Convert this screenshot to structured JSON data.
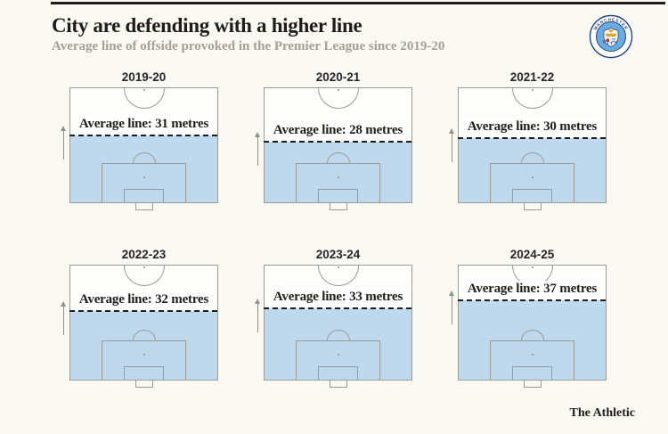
{
  "header": {
    "title": "City are defending with a higher line",
    "subtitle": "Average line of offside provoked in the Premier League since 2019-20"
  },
  "badge": {
    "club": "Manchester City",
    "ring_top_text": "MANCHESTER",
    "ring_bottom_text": "CITY"
  },
  "chart_data": {
    "type": "area",
    "subtype": "football-pitch-small-multiples",
    "title": "City are defending with a higher line",
    "subtitle": "Average line of offside provoked in the Premier League since 2019-20",
    "categories": [
      "2019-20",
      "2020-21",
      "2021-22",
      "2022-23",
      "2023-24",
      "2024-25"
    ],
    "values_metres": [
      31,
      28,
      30,
      32,
      33,
      37
    ],
    "unit": "metres",
    "pitch_half_length_metres": 53,
    "layout": {
      "rows": 2,
      "cols": 3,
      "legend": "none",
      "grid": "off"
    },
    "panel_labels": [
      "Average line: 31 metres",
      "Average line: 28 metres",
      "Average line: 30 metres",
      "Average line: 32 metres",
      "Average line: 33 metres",
      "Average line: 37 metres"
    ]
  },
  "pitches": [
    {
      "season": "2019-20",
      "metres": 31,
      "label": "Average line: 31 metres"
    },
    {
      "season": "2020-21",
      "metres": 28,
      "label": "Average line: 28 metres"
    },
    {
      "season": "2021-22",
      "metres": 30,
      "label": "Average line: 30 metres"
    },
    {
      "season": "2022-23",
      "metres": 32,
      "label": "Average line: 32 metres"
    },
    {
      "season": "2023-24",
      "metres": 33,
      "label": "Average line: 33 metres"
    },
    {
      "season": "2024-25",
      "metres": 37,
      "label": "Average line: 37 metres"
    }
  ],
  "footer": {
    "credit": "The Athletic"
  },
  "colors": {
    "background": "#f9f8f2",
    "fill_blue": "#bed9ee",
    "pitch_line": "#9a9a96",
    "dashed_line": "#1d1d1b",
    "title_text": "#1d1d1b",
    "subtitle_text": "#a3a099",
    "arrow": "#8f8f8b",
    "label_bg": "#ffffff",
    "crest_sky": "#6cabdd",
    "crest_navy": "#24447c",
    "crest_gold": "#d7a32b",
    "crest_red": "#c0313f"
  }
}
